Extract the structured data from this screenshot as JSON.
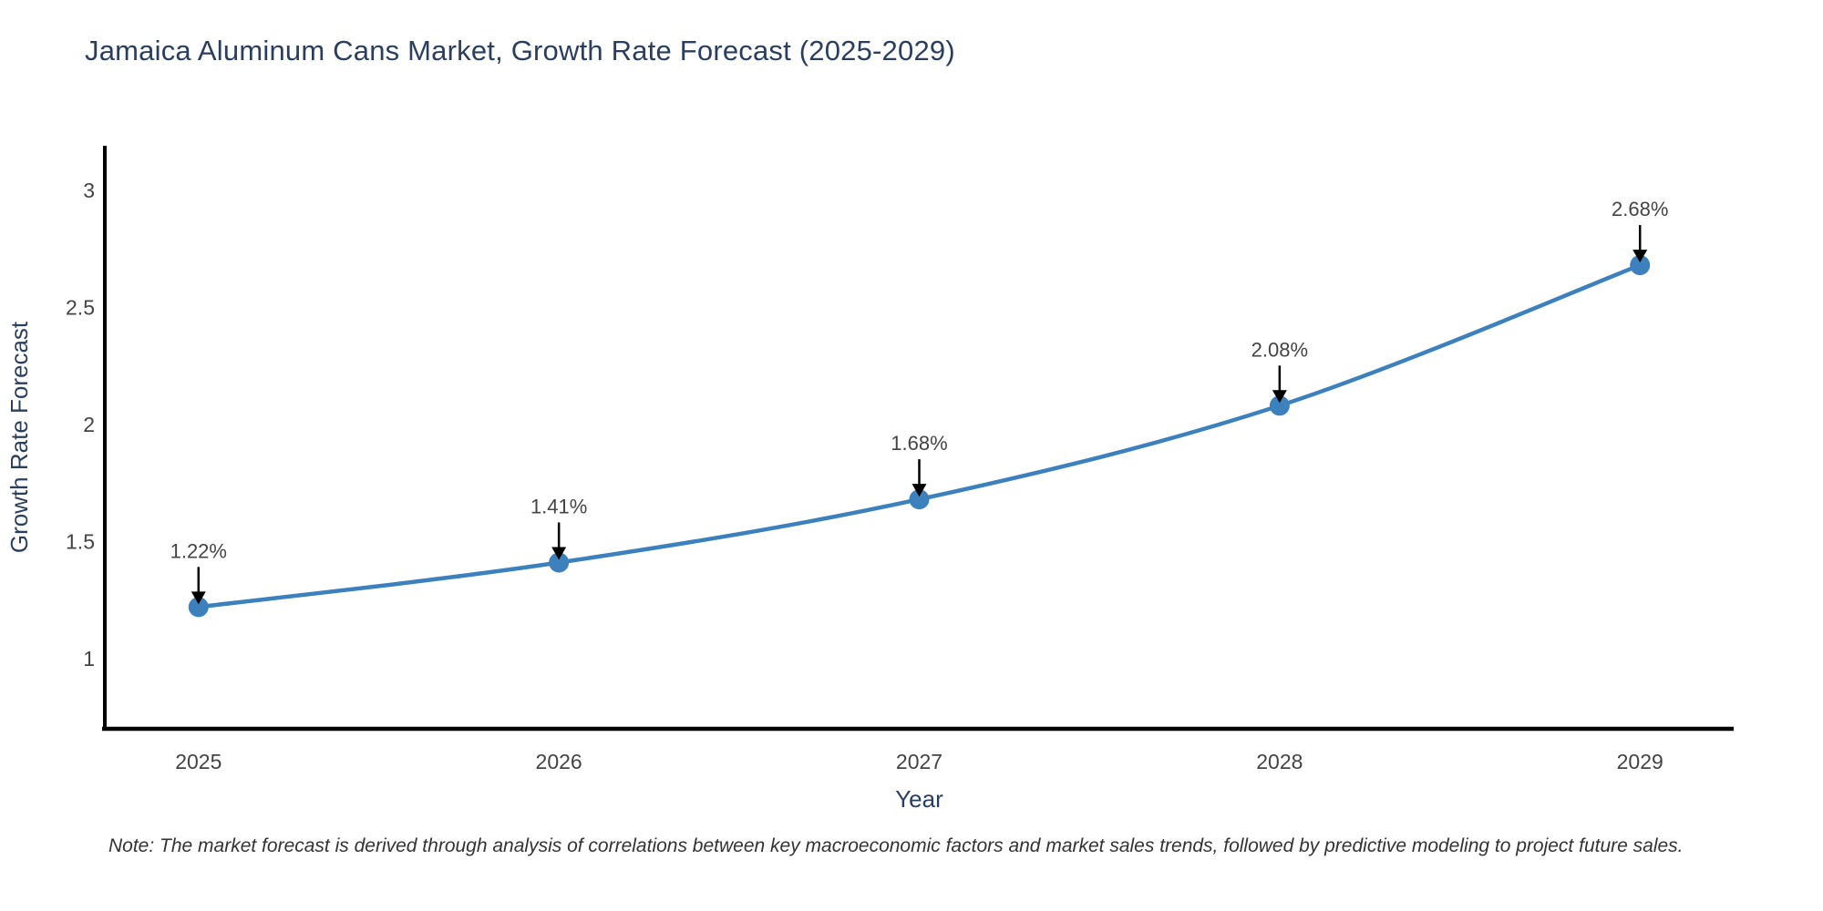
{
  "note": "Note: The market forecast is derived through analysis of correlations between key macroeconomic factors and market sales trends, followed by predictive modeling to project future sales.",
  "chart_data": {
    "type": "line",
    "title": "Jamaica Aluminum Cans Market, Growth Rate Forecast (2025-2029)",
    "xlabel": "Year",
    "ylabel": "Growth Rate Forecast",
    "x": [
      2025,
      2026,
      2027,
      2028,
      2029
    ],
    "y": [
      1.22,
      1.41,
      1.68,
      2.08,
      2.68
    ],
    "point_labels": [
      "1.22%",
      "1.41%",
      "1.68%",
      "2.08%",
      "2.68%"
    ],
    "x_tick_labels": [
      "2025",
      "2026",
      "2027",
      "2028",
      "2029"
    ],
    "y_tick_values": [
      1,
      1.5,
      2,
      2.5,
      3
    ],
    "y_tick_labels": [
      "1",
      "1.5",
      "2",
      "2.5",
      "3"
    ],
    "xlim": [
      2024.74,
      2029.26
    ],
    "ylim": [
      0.7,
      3.19
    ],
    "line_shape": "spline",
    "grid": false,
    "legend": "none",
    "colors": {
      "line": "#3d80be",
      "marker": "#3d80be",
      "axis_line": "#000000",
      "tick_text": "#444444",
      "axis_title_text": "#2a3f5f",
      "chart_title_text": "#2a3f5f",
      "annotation_text": "#444444",
      "annotation_arrow": "#000000",
      "note_text": "#333333",
      "background": "#ffffff"
    }
  }
}
